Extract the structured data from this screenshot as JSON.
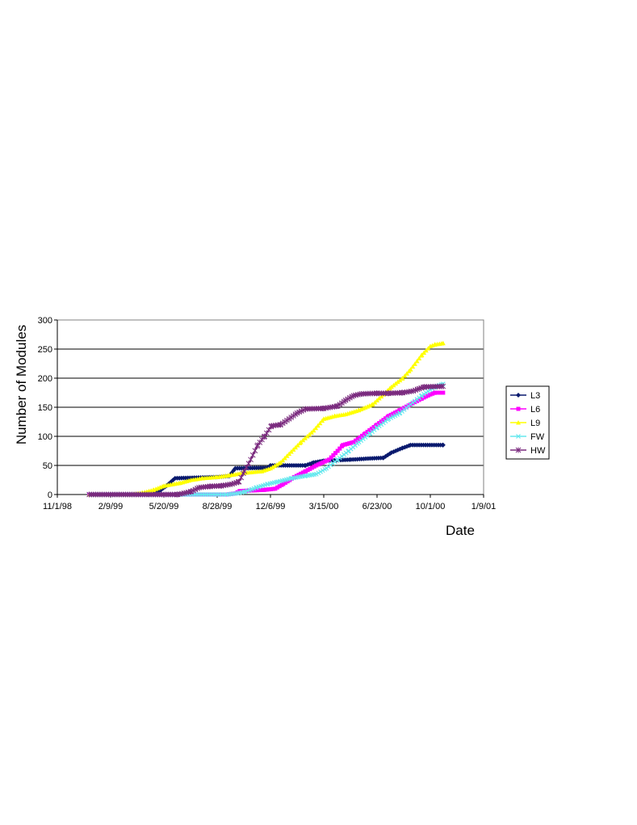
{
  "chart_data": {
    "type": "line",
    "title": "",
    "xlabel": "Date",
    "ylabel": "Number of Modules",
    "ylim": [
      0,
      300
    ],
    "y_ticks": [
      0,
      50,
      100,
      150,
      200,
      250,
      300
    ],
    "x_ticks": [
      "11/1/98",
      "2/9/99",
      "5/20/99",
      "8/28/99",
      "12/6/99",
      "3/15/00",
      "6/23/00",
      "10/1/00",
      "1/9/01"
    ],
    "xlim": [
      "11/1/98",
      "1/9/01"
    ],
    "grid": "horizontal",
    "legend_position": "right",
    "series": [
      {
        "name": "L3",
        "color": "#0a1a6e",
        "marker": "diamond",
        "points": [
          [
            "12/31/98",
            0
          ],
          [
            "4/20/99",
            0
          ],
          [
            "5/10/99",
            5
          ],
          [
            "5/25/99",
            15
          ],
          [
            "6/10/99",
            28
          ],
          [
            "8/28/99",
            30
          ],
          [
            "9/20/99",
            32
          ],
          [
            "10/1/99",
            45
          ],
          [
            "12/1/99",
            46
          ],
          [
            "12/6/99",
            50
          ],
          [
            "2/10/00",
            50
          ],
          [
            "2/25/00",
            55
          ],
          [
            "3/15/00",
            58
          ],
          [
            "5/5/00",
            60
          ],
          [
            "6/10/00",
            62
          ],
          [
            "7/5/00",
            63
          ],
          [
            "7/20/00",
            72
          ],
          [
            "8/10/00",
            80
          ],
          [
            "8/25/00",
            85
          ],
          [
            "10/25/00",
            85
          ]
        ]
      },
      {
        "name": "L6",
        "color": "#ff00ff",
        "marker": "square",
        "points": [
          [
            "12/31/98",
            0
          ],
          [
            "9/15/99",
            0
          ],
          [
            "10/1/99",
            2
          ],
          [
            "10/10/99",
            6
          ],
          [
            "11/25/99",
            8
          ],
          [
            "12/15/99",
            10
          ],
          [
            "12/30/99",
            18
          ],
          [
            "1/20/00",
            30
          ],
          [
            "2/10/00",
            40
          ],
          [
            "3/1/00",
            50
          ],
          [
            "3/25/00",
            60
          ],
          [
            "4/10/00",
            75
          ],
          [
            "4/20/00",
            85
          ],
          [
            "5/10/00",
            90
          ],
          [
            "6/1/00",
            105
          ],
          [
            "6/23/00",
            120
          ],
          [
            "7/15/00",
            135
          ],
          [
            "8/5/00",
            145
          ],
          [
            "8/25/00",
            155
          ],
          [
            "9/15/00",
            165
          ],
          [
            "10/1/00",
            172
          ],
          [
            "10/10/00",
            175
          ],
          [
            "10/25/00",
            175
          ]
        ]
      },
      {
        "name": "L9",
        "color": "#ffff00",
        "marker": "triangle",
        "points": [
          [
            "12/31/98",
            0
          ],
          [
            "3/20/99",
            0
          ],
          [
            "4/10/99",
            3
          ],
          [
            "5/1/99",
            8
          ],
          [
            "5/20/99",
            15
          ],
          [
            "6/20/99",
            20
          ],
          [
            "7/10/99",
            25
          ],
          [
            "8/1/99",
            28
          ],
          [
            "8/28/99",
            30
          ],
          [
            "9/20/99",
            33
          ],
          [
            "10/15/99",
            37
          ],
          [
            "11/20/99",
            40
          ],
          [
            "12/6/99",
            45
          ],
          [
            "12/25/99",
            55
          ],
          [
            "1/10/00",
            70
          ],
          [
            "2/1/00",
            90
          ],
          [
            "2/25/00",
            110
          ],
          [
            "3/15/00",
            130
          ],
          [
            "4/5/00",
            135
          ],
          [
            "4/25/00",
            138
          ],
          [
            "5/20/00",
            145
          ],
          [
            "6/15/00",
            155
          ],
          [
            "7/5/00",
            172
          ],
          [
            "7/20/00",
            185
          ],
          [
            "8/10/00",
            200
          ],
          [
            "8/25/00",
            215
          ],
          [
            "9/15/00",
            240
          ],
          [
            "10/1/00",
            255
          ],
          [
            "10/10/00",
            258
          ],
          [
            "10/25/00",
            260
          ]
        ]
      },
      {
        "name": "FW",
        "color": "#66e8ee",
        "marker": "x",
        "points": [
          [
            "12/31/98",
            0
          ],
          [
            "9/15/99",
            0
          ],
          [
            "10/5/99",
            2
          ],
          [
            "10/20/99",
            5
          ],
          [
            "11/10/99",
            12
          ],
          [
            "12/1/99",
            18
          ],
          [
            "12/20/99",
            22
          ],
          [
            "1/15/00",
            28
          ],
          [
            "2/10/00",
            32
          ],
          [
            "3/1/00",
            35
          ],
          [
            "3/20/00",
            45
          ],
          [
            "4/10/00",
            60
          ],
          [
            "5/1/00",
            75
          ],
          [
            "5/20/00",
            90
          ],
          [
            "6/10/00",
            105
          ],
          [
            "6/23/00",
            115
          ],
          [
            "7/15/00",
            130
          ],
          [
            "8/5/00",
            140
          ],
          [
            "8/25/00",
            155
          ],
          [
            "9/15/00",
            170
          ],
          [
            "10/1/00",
            180
          ],
          [
            "10/10/00",
            185
          ],
          [
            "10/25/00",
            190
          ]
        ]
      },
      {
        "name": "HW",
        "color": "#7a2a7e",
        "marker": "star",
        "points": [
          [
            "12/31/98",
            0
          ],
          [
            "6/15/99",
            0
          ],
          [
            "7/10/99",
            5
          ],
          [
            "7/25/99",
            12
          ],
          [
            "8/15/99",
            14
          ],
          [
            "9/5/99",
            15
          ],
          [
            "9/25/99",
            18
          ],
          [
            "10/8/99",
            22
          ],
          [
            "10/18/99",
            40
          ],
          [
            "10/30/99",
            60
          ],
          [
            "11/12/99",
            85
          ],
          [
            "11/25/99",
            100
          ],
          [
            "12/8/99",
            118
          ],
          [
            "12/25/99",
            120
          ],
          [
            "1/10/00",
            130
          ],
          [
            "1/25/00",
            140
          ],
          [
            "2/10/00",
            147
          ],
          [
            "3/15/00",
            148
          ],
          [
            "4/10/00",
            152
          ],
          [
            "4/25/00",
            162
          ],
          [
            "5/10/00",
            170
          ],
          [
            "5/25/00",
            173
          ],
          [
            "6/23/00",
            174
          ],
          [
            "7/15/00",
            174
          ],
          [
            "8/10/00",
            175
          ],
          [
            "8/30/00",
            178
          ],
          [
            "9/10/00",
            182
          ],
          [
            "9/20/00",
            185
          ],
          [
            "10/25/00",
            186
          ]
        ]
      }
    ]
  }
}
